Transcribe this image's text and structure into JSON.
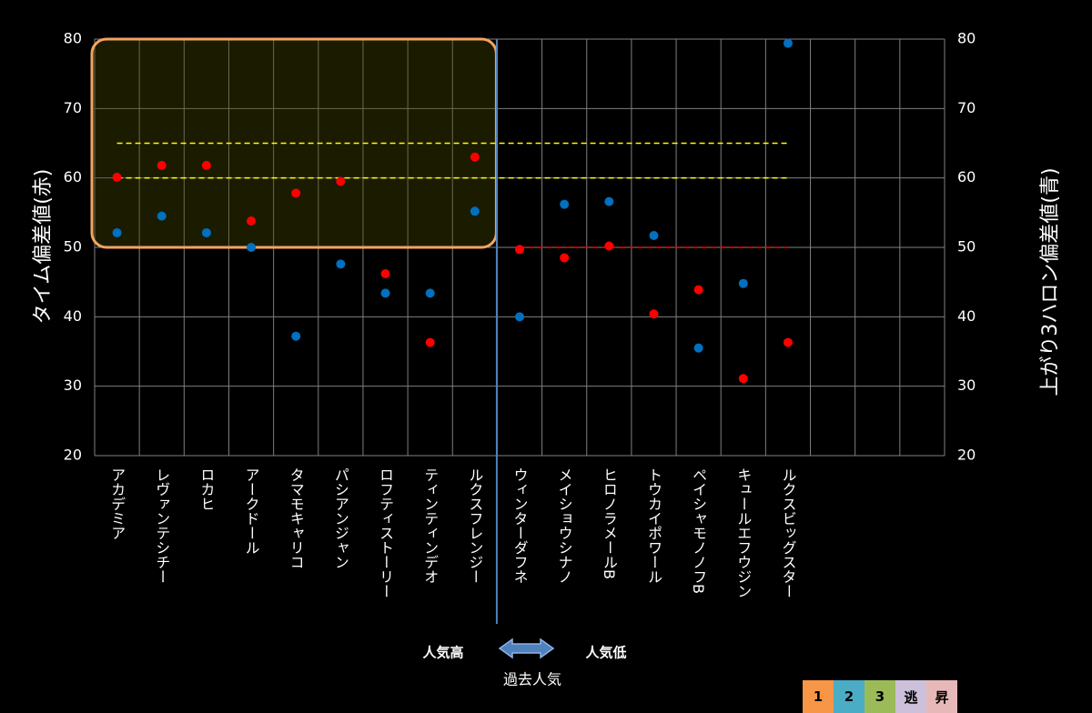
{
  "chart_data": {
    "type": "scatter",
    "title": "",
    "ylabel": "タイム偏差値(赤)",
    "ylabel_right": "上がり3ハロン偏差値(青)",
    "ylim": [
      20,
      80
    ],
    "yticks": [
      20,
      30,
      40,
      50,
      60,
      70,
      80
    ],
    "grid": true,
    "categories": [
      "アカデミア",
      "レヴァンテシチー",
      "ロカヒ",
      "アークドール",
      "タマモキャリコ",
      "パシアンジャン",
      "ロフティストーリー",
      "ティンティンデオ",
      "ルクスフレンジー",
      "ウィンターダフネ",
      "メイショウシナノ",
      "ヒロノラメールB",
      "トウカイポワール",
      "ペイシャモノノフB",
      "キュールエフウジン",
      "ルクスビッグスター"
    ],
    "series": [
      {
        "name": "タイム偏差値(赤)",
        "color": "#ff0000",
        "values": [
          60.1,
          61.8,
          61.8,
          53.8,
          57.8,
          59.5,
          46.2,
          36.3,
          63.0,
          49.7,
          48.5,
          50.2,
          40.4,
          43.9,
          31.1,
          36.3
        ]
      },
      {
        "name": "上がり3ハロン偏差値(青)",
        "color": "#0070c0",
        "values": [
          52.1,
          54.5,
          52.1,
          50.0,
          37.2,
          47.6,
          43.4,
          43.4,
          55.2,
          40.0,
          56.2,
          56.6,
          51.7,
          35.5,
          44.8,
          79.4
        ]
      }
    ],
    "reference_lines": [
      {
        "y": 65,
        "from_index": 0,
        "to_index": 15,
        "color": "#ffff00"
      },
      {
        "y": 60,
        "from_index": 0,
        "to_index": 15,
        "color": "#ffff00"
      },
      {
        "y": 50,
        "from_index": 9,
        "to_index": 15,
        "color": "#ff0000"
      }
    ],
    "highlight_box": {
      "from_index": 0,
      "to_index": 8,
      "y_from": 50,
      "y_to": 80,
      "color": "#f4a460"
    },
    "divider_after_index": 8,
    "annotations": {
      "left": "人気高",
      "right": "人気低",
      "center": "過去人気"
    }
  },
  "legend": [
    {
      "label": "1",
      "color": "#f79646"
    },
    {
      "label": "2",
      "color": "#4bacc6"
    },
    {
      "label": "3",
      "color": "#9bbb59"
    },
    {
      "label": "逃",
      "color": "#ccc0da"
    },
    {
      "label": "昇",
      "color": "#e6b9b8"
    }
  ]
}
